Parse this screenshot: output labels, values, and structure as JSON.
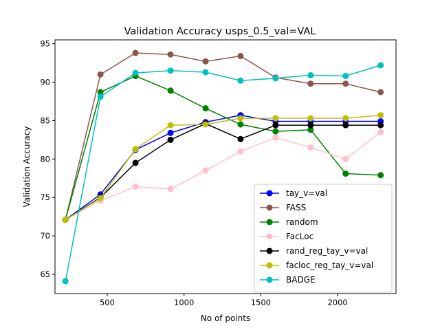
{
  "chart_data": {
    "type": "line",
    "title": "Validation Accuracy usps_0.5_val=VAL",
    "xlabel": "No of points",
    "ylabel": "Validation Accuracy",
    "xlim": [
      160,
      2380
    ],
    "ylim": [
      62.5,
      95.5
    ],
    "xticks": [
      500,
      1000,
      1500,
      2000
    ],
    "yticks": [
      65,
      70,
      75,
      80,
      85,
      90,
      95
    ],
    "xtick_labels": [
      "500",
      "1000",
      "1500",
      "2000"
    ],
    "ytick_labels": [
      "65",
      "70",
      "75",
      "80",
      "85",
      "90",
      "95"
    ],
    "grid": false,
    "legend_position": "lower-right",
    "x": [
      228,
      456,
      684,
      912,
      1140,
      1368,
      1596,
      1824,
      2052,
      2280
    ],
    "series": [
      {
        "name": "tay_v=val",
        "color": "#0000ff",
        "values": [
          72.1,
          75.4,
          81.2,
          83.4,
          84.8,
          85.7,
          84.9,
          84.9,
          84.9,
          84.9
        ]
      },
      {
        "name": "FASS",
        "color": "#8c564b",
        "values": [
          72.1,
          91.0,
          93.8,
          93.6,
          92.7,
          93.4,
          90.6,
          89.8,
          89.8,
          88.7
        ]
      },
      {
        "name": "random",
        "color": "#008000",
        "values": [
          72.1,
          88.7,
          90.8,
          88.9,
          86.6,
          84.5,
          83.6,
          83.8,
          78.1,
          77.9
        ]
      },
      {
        "name": "FacLoc",
        "color": "#ffc0cb",
        "values": [
          72.1,
          74.6,
          76.4,
          76.1,
          78.5,
          81.0,
          82.8,
          81.5,
          80.0,
          83.5
        ]
      },
      {
        "name": "rand_reg_tay_v=val",
        "color": "#000000",
        "values": [
          72.1,
          75.0,
          79.5,
          82.5,
          84.6,
          82.6,
          84.4,
          84.4,
          84.4,
          84.4
        ]
      },
      {
        "name": "facloc_reg_tay_v=val",
        "color": "#bfbf00",
        "values": [
          72.1,
          74.9,
          81.3,
          84.4,
          84.5,
          85.3,
          85.3,
          85.3,
          85.3,
          85.7
        ]
      },
      {
        "name": "BADGE",
        "color": "#00bfbf",
        "values": [
          64.1,
          88.1,
          91.2,
          91.5,
          91.3,
          90.2,
          90.5,
          90.9,
          90.8,
          92.2
        ]
      }
    ]
  }
}
